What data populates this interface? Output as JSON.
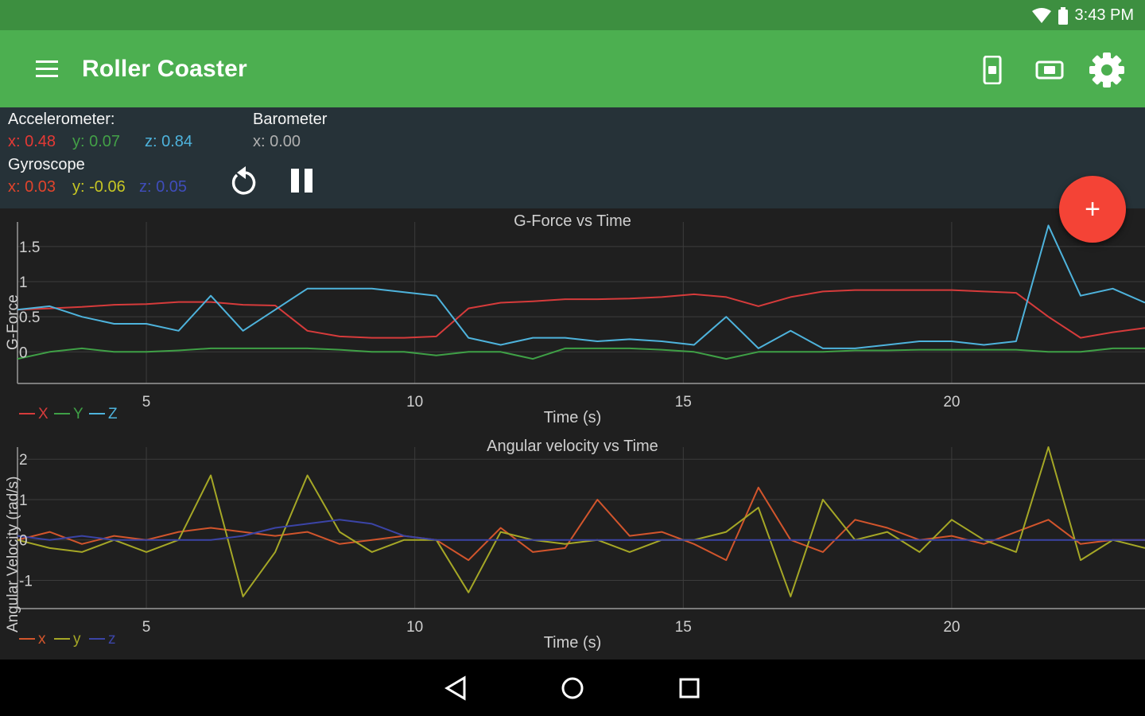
{
  "status_bar": {
    "time": "3:43 PM",
    "icons": [
      "wifi-icon",
      "battery-icon"
    ]
  },
  "app_bar": {
    "title": "Roller Coaster",
    "menu_icon": "menu-icon",
    "actions": [
      "phone-sensor-icon",
      "screen-record-icon",
      "settings-icon"
    ]
  },
  "sensors": {
    "accelerometer": {
      "label": "Accelerometer:",
      "x": "x: 0.48",
      "y": "y: 0.07",
      "z": "z: 0.84"
    },
    "barometer": {
      "label": "Barometer",
      "x": "x: 0.00"
    },
    "gyroscope": {
      "label": "Gyroscope",
      "x": "x: 0.03",
      "y": "y: -0.06",
      "z": "z: 0.05"
    }
  },
  "controls": {
    "reset_icon": "reset-icon",
    "pause_icon": "pause-icon",
    "fab_label": "+"
  },
  "colors": {
    "accent": "#4caf50",
    "status": "#3d8f40",
    "panel": "#263238",
    "fab": "#f44336",
    "gforce_x": "#d63b3b",
    "gforce_y": "#3fa046",
    "gforce_z": "#4eb3dc",
    "ang_x": "#d2552c",
    "ang_y": "#a5a726",
    "ang_z": "#3b44a6"
  },
  "chart_data": [
    {
      "type": "line",
      "title": "G-Force vs Time",
      "xlabel": "Time (s)",
      "ylabel": "G-Force",
      "xticks": [
        5,
        10,
        15,
        20
      ],
      "yticks": [
        "0",
        "0.5",
        "1",
        "1.5"
      ],
      "xlim": [
        2.6,
        23.6
      ],
      "ylim": [
        -0.45,
        1.85
      ],
      "grid": true,
      "legend_position": "bottom-left",
      "x": [
        2.6,
        3.2,
        3.8,
        4.4,
        5.0,
        5.6,
        6.2,
        6.8,
        7.4,
        8.0,
        8.6,
        9.2,
        9.8,
        10.4,
        11.0,
        11.6,
        12.2,
        12.8,
        13.4,
        14.0,
        14.6,
        15.2,
        15.8,
        16.4,
        17.0,
        17.6,
        18.2,
        18.8,
        19.4,
        20.0,
        20.6,
        21.2,
        21.8,
        22.4,
        23.0,
        23.6
      ],
      "series": [
        {
          "name": "X",
          "values": [
            0.6,
            0.62,
            0.64,
            0.67,
            0.68,
            0.71,
            0.71,
            0.67,
            0.66,
            0.3,
            0.22,
            0.2,
            0.2,
            0.22,
            0.62,
            0.7,
            0.72,
            0.75,
            0.75,
            0.76,
            0.78,
            0.82,
            0.78,
            0.65,
            0.78,
            0.86,
            0.88,
            0.88,
            0.88,
            0.88,
            0.86,
            0.84,
            0.5,
            0.2,
            0.28,
            0.34
          ]
        },
        {
          "name": "Y",
          "values": [
            -0.1,
            0.0,
            0.05,
            0.0,
            0.0,
            0.02,
            0.05,
            0.05,
            0.05,
            0.05,
            0.03,
            0.0,
            0.0,
            -0.05,
            0.0,
            0.0,
            -0.1,
            0.05,
            0.05,
            0.05,
            0.03,
            0.0,
            -0.1,
            0.0,
            0.0,
            0.0,
            0.02,
            0.02,
            0.03,
            0.03,
            0.03,
            0.03,
            0.0,
            0.0,
            0.05,
            0.05
          ]
        },
        {
          "name": "Z",
          "values": [
            0.6,
            0.65,
            0.5,
            0.4,
            0.4,
            0.3,
            0.8,
            0.3,
            0.6,
            0.9,
            0.9,
            0.9,
            0.85,
            0.8,
            0.2,
            0.1,
            0.2,
            0.2,
            0.15,
            0.18,
            0.15,
            0.1,
            0.5,
            0.05,
            0.3,
            0.05,
            0.05,
            0.1,
            0.15,
            0.15,
            0.1,
            0.15,
            1.8,
            0.8,
            0.9,
            0.7
          ]
        }
      ]
    },
    {
      "type": "line",
      "title": "Angular velocity vs Time",
      "xlabel": "Time (s)",
      "ylabel": "Angular Velocity (rad/s)",
      "xticks": [
        5,
        10,
        15,
        20
      ],
      "yticks": [
        "-1",
        "0",
        "1",
        "2"
      ],
      "xlim": [
        2.6,
        23.6
      ],
      "ylim": [
        -1.7,
        2.3
      ],
      "grid": true,
      "legend_position": "bottom-left",
      "x": [
        2.6,
        3.2,
        3.8,
        4.4,
        5.0,
        5.6,
        6.2,
        6.8,
        7.4,
        8.0,
        8.6,
        9.2,
        9.8,
        10.4,
        11.0,
        11.6,
        12.2,
        12.8,
        13.4,
        14.0,
        14.6,
        15.2,
        15.8,
        16.4,
        17.0,
        17.6,
        18.2,
        18.8,
        19.4,
        20.0,
        20.6,
        21.2,
        21.8,
        22.4,
        23.0,
        23.6
      ],
      "series": [
        {
          "name": "x",
          "values": [
            0.0,
            0.2,
            -0.1,
            0.1,
            0.0,
            0.2,
            0.3,
            0.2,
            0.1,
            0.2,
            -0.1,
            0.0,
            0.1,
            0.0,
            -0.5,
            0.3,
            -0.3,
            -0.2,
            1.0,
            0.1,
            0.2,
            -0.1,
            -0.5,
            1.3,
            0.0,
            -0.3,
            0.5,
            0.3,
            0.0,
            0.1,
            -0.1,
            0.2,
            0.5,
            -0.1,
            0.0,
            0.0
          ]
        },
        {
          "name": "y",
          "values": [
            0.0,
            -0.2,
            -0.3,
            0.0,
            -0.3,
            0.0,
            1.6,
            -1.4,
            -0.3,
            1.6,
            0.2,
            -0.3,
            0.0,
            0.0,
            -1.3,
            0.2,
            0.0,
            -0.1,
            0.0,
            -0.3,
            0.0,
            0.0,
            0.2,
            0.8,
            -1.4,
            1.0,
            0.0,
            0.2,
            -0.3,
            0.5,
            0.0,
            -0.3,
            2.3,
            -0.5,
            0.0,
            -0.2
          ]
        },
        {
          "name": "z",
          "values": [
            0.1,
            0.0,
            0.1,
            0.0,
            0.0,
            0.0,
            0.0,
            0.1,
            0.3,
            0.4,
            0.5,
            0.4,
            0.1,
            0.0,
            0.0,
            0.0,
            0.0,
            0.0,
            0.0,
            0.0,
            0.0,
            0.0,
            0.0,
            0.0,
            0.0,
            0.0,
            0.0,
            0.0,
            0.0,
            0.0,
            0.0,
            0.0,
            0.0,
            0.0,
            0.0,
            0.0
          ]
        }
      ]
    }
  ]
}
